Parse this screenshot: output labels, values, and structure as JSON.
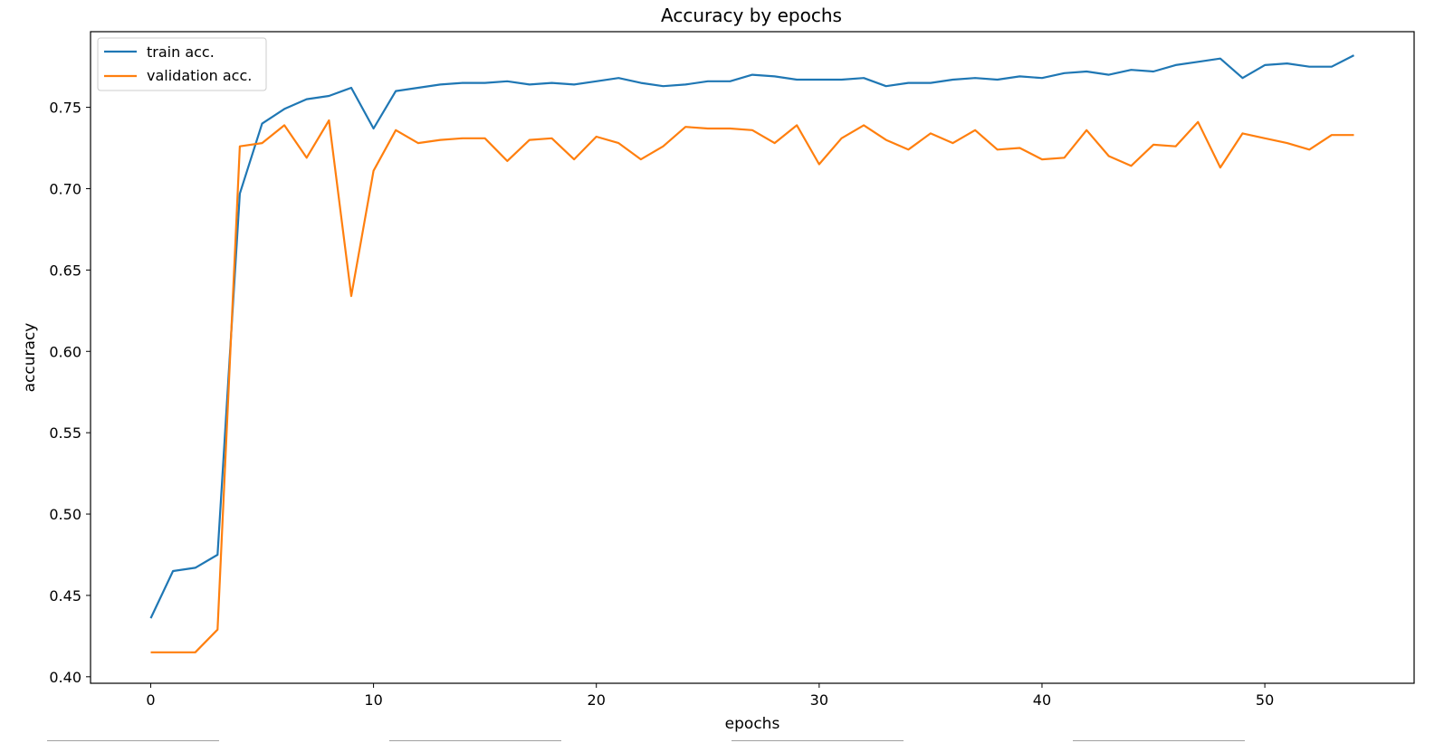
{
  "chart_data": {
    "type": "line",
    "title": "Accuracy by epochs",
    "xlabel": "epochs",
    "ylabel": "accuracy",
    "xlim": [
      -2.7,
      56.7
    ],
    "ylim": [
      0.396,
      0.7965
    ],
    "xticks": [
      0,
      10,
      20,
      30,
      40,
      50
    ],
    "yticks": [
      0.4,
      0.45,
      0.5,
      0.55,
      0.6,
      0.65,
      0.7,
      0.75
    ],
    "ytick_labels": [
      "0.40",
      "0.45",
      "0.50",
      "0.55",
      "0.60",
      "0.65",
      "0.70",
      "0.75"
    ],
    "grid": false,
    "legend_position": "top-left",
    "x": [
      0,
      1,
      2,
      3,
      4,
      5,
      6,
      7,
      8,
      9,
      10,
      11,
      12,
      13,
      14,
      15,
      16,
      17,
      18,
      19,
      20,
      21,
      22,
      23,
      24,
      25,
      26,
      27,
      28,
      29,
      30,
      31,
      32,
      33,
      34,
      35,
      36,
      37,
      38,
      39,
      40,
      41,
      42,
      43,
      44,
      45,
      46,
      47,
      48,
      49,
      50,
      51,
      52,
      53,
      54
    ],
    "series": [
      {
        "name": "train acc.",
        "color": "#1f77b4",
        "values": [
          0.436,
          0.465,
          0.467,
          0.475,
          0.697,
          0.74,
          0.749,
          0.755,
          0.757,
          0.762,
          0.737,
          0.76,
          0.762,
          0.764,
          0.765,
          0.765,
          0.766,
          0.764,
          0.765,
          0.764,
          0.766,
          0.768,
          0.765,
          0.763,
          0.764,
          0.766,
          0.766,
          0.77,
          0.769,
          0.767,
          0.767,
          0.767,
          0.768,
          0.763,
          0.765,
          0.765,
          0.767,
          0.768,
          0.767,
          0.769,
          0.768,
          0.771,
          0.772,
          0.77,
          0.773,
          0.772,
          0.776,
          0.778,
          0.78,
          0.768,
          0.776,
          0.777,
          0.775,
          0.775,
          0.782
        ]
      },
      {
        "name": "validation acc.",
        "color": "#ff7f0e",
        "values": [
          0.415,
          0.415,
          0.415,
          0.429,
          0.726,
          0.728,
          0.739,
          0.719,
          0.742,
          0.634,
          0.711,
          0.736,
          0.728,
          0.73,
          0.731,
          0.731,
          0.717,
          0.73,
          0.731,
          0.718,
          0.732,
          0.728,
          0.718,
          0.726,
          0.738,
          0.737,
          0.737,
          0.736,
          0.728,
          0.739,
          0.715,
          0.731,
          0.739,
          0.73,
          0.724,
          0.734,
          0.728,
          0.736,
          0.724,
          0.725,
          0.718,
          0.719,
          0.736,
          0.72,
          0.714,
          0.727,
          0.726,
          0.741,
          0.713,
          0.734,
          0.731,
          0.728,
          0.724,
          0.733,
          0.733
        ]
      }
    ]
  }
}
